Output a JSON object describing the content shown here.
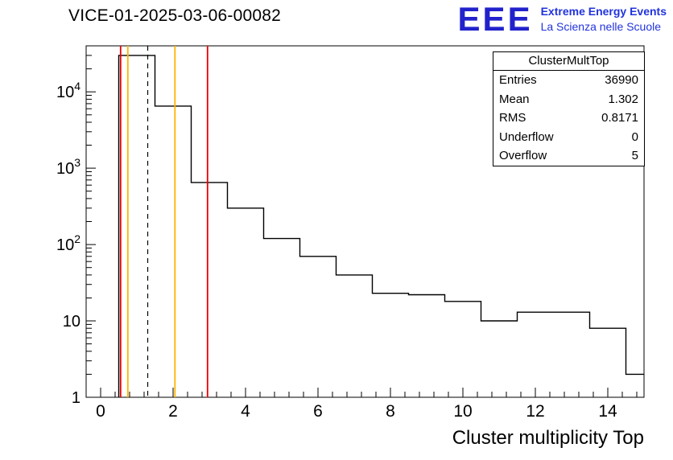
{
  "header": {
    "title": "VICE-01-2025-03-06-00082"
  },
  "logo": {
    "acronym": "EEE",
    "line1": "Extreme Energy Events",
    "line2": "La Scienza nelle Scuole",
    "color": "#2233dd"
  },
  "stats": {
    "title": "ClusterMultTop",
    "rows": [
      {
        "label": "Entries",
        "value": "36990"
      },
      {
        "label": "Mean",
        "value": "1.302"
      },
      {
        "label": "RMS",
        "value": "0.8171"
      },
      {
        "label": "Underflow",
        "value": "0"
      },
      {
        "label": "Overflow",
        "value": "5"
      }
    ]
  },
  "chart_data": {
    "type": "bar",
    "subtype": "step-histogram",
    "title": "VICE-01-2025-03-06-00082",
    "xlabel": "Cluster multiplicity Top",
    "ylabel": "",
    "y_scale": "log",
    "grid": false,
    "legend_position": "top-right-stats-box",
    "x_range": [
      -0.4,
      15.0
    ],
    "y_range": [
      1,
      40000
    ],
    "bin_width": 1,
    "bin_centers": [
      1,
      2,
      3,
      4,
      5,
      6,
      7,
      8,
      9,
      10,
      11,
      12,
      13,
      14,
      15
    ],
    "counts": [
      30000,
      6500,
      650,
      300,
      120,
      70,
      40,
      23,
      22,
      18,
      10,
      13,
      13,
      8,
      2
    ],
    "x_ticks": [
      0,
      2,
      4,
      6,
      8,
      10,
      12,
      14
    ],
    "y_ticks": [
      {
        "value": 1,
        "label": "1"
      },
      {
        "value": 10,
        "label": "10"
      },
      {
        "value": 100,
        "label": "10",
        "exp": "2"
      },
      {
        "value": 1000,
        "label": "10",
        "exp": "3"
      },
      {
        "value": 10000,
        "label": "10",
        "exp": "4"
      }
    ],
    "line_color": "#000000",
    "reference_lines": [
      {
        "x": 0.55,
        "color": "#ee0000",
        "style": "solid"
      },
      {
        "x": 0.75,
        "color": "#ffb300",
        "style": "solid"
      },
      {
        "x": 1.3,
        "color": "#000000",
        "style": "dashed"
      },
      {
        "x": 2.05,
        "color": "#ffb300",
        "style": "solid"
      },
      {
        "x": 2.95,
        "color": "#ee0000",
        "style": "solid"
      }
    ]
  }
}
